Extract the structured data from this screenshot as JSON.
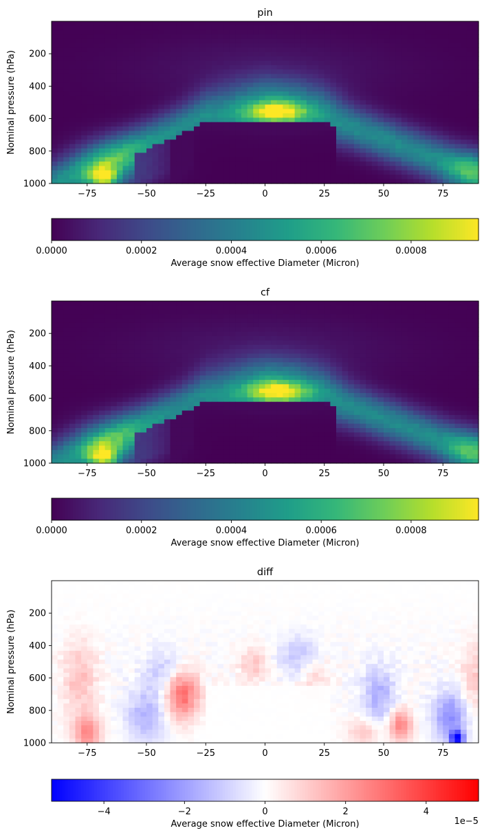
{
  "chart_data": [
    {
      "type": "heatmap",
      "title": "pin",
      "xlabel": "",
      "ylabel": "Nominal pressure (hPa)",
      "xlim": [
        -90,
        90
      ],
      "ylim": [
        1000,
        0
      ],
      "x_ticks": [
        -75,
        -50,
        -25,
        0,
        25,
        50,
        75
      ],
      "x_tick_labels": [
        "−75",
        "−50",
        "−25",
        "0",
        "25",
        "50",
        "75"
      ],
      "y_ticks": [
        200,
        400,
        600,
        800,
        1000
      ],
      "y_tick_labels": [
        "200",
        "400",
        "600",
        "800",
        "1000"
      ],
      "colormap": "viridis",
      "colorbar": {
        "label": "Average snow effective Diameter (Micron)",
        "range": [
          0,
          0.00095
        ],
        "ticks": [
          0,
          0.0002,
          0.0004,
          0.0006,
          0.0008
        ],
        "tick_labels": [
          "0.0000",
          "0.0002",
          "0.0004",
          "0.0006",
          "0.0008"
        ],
        "orientation": "horizontal"
      },
      "grid": false
    },
    {
      "type": "heatmap",
      "title": "cf",
      "xlabel": "",
      "ylabel": "Nominal pressure (hPa)",
      "xlim": [
        -90,
        90
      ],
      "ylim": [
        1000,
        0
      ],
      "x_ticks": [
        -75,
        -50,
        -25,
        0,
        25,
        50,
        75
      ],
      "x_tick_labels": [
        "−75",
        "−50",
        "−25",
        "0",
        "25",
        "50",
        "75"
      ],
      "y_ticks": [
        200,
        400,
        600,
        800,
        1000
      ],
      "y_tick_labels": [
        "200",
        "400",
        "600",
        "800",
        "1000"
      ],
      "colormap": "viridis",
      "colorbar": {
        "label": "Average snow effective Diameter (Micron)",
        "range": [
          0,
          0.00095
        ],
        "ticks": [
          0,
          0.0002,
          0.0004,
          0.0006,
          0.0008
        ],
        "tick_labels": [
          "0.0000",
          "0.0002",
          "0.0004",
          "0.0006",
          "0.0008"
        ],
        "orientation": "horizontal"
      },
      "grid": false
    },
    {
      "type": "heatmap",
      "title": "diff",
      "xlabel": "",
      "ylabel": "Nominal pressure (hPa)",
      "xlim": [
        -90,
        90
      ],
      "ylim": [
        1000,
        0
      ],
      "x_ticks": [
        -75,
        -50,
        -25,
        0,
        25,
        50,
        75
      ],
      "x_tick_labels": [
        "−75",
        "−50",
        "−25",
        "0",
        "25",
        "50",
        "75"
      ],
      "y_ticks": [
        200,
        400,
        600,
        800,
        1000
      ],
      "y_tick_labels": [
        "200",
        "400",
        "600",
        "800",
        "1000"
      ],
      "colormap": "bwr",
      "colorbar": {
        "label": "Average snow effective Diameter (Micron)",
        "range": [
          -5.3e-05,
          5.3e-05
        ],
        "ticks": [
          -4e-05,
          -2e-05,
          0,
          2e-05,
          4e-05
        ],
        "tick_labels": [
          "−4",
          "−2",
          "0",
          "2",
          "4"
        ],
        "offset_text": "1e−5",
        "orientation": "horizontal"
      },
      "grid": false
    }
  ]
}
